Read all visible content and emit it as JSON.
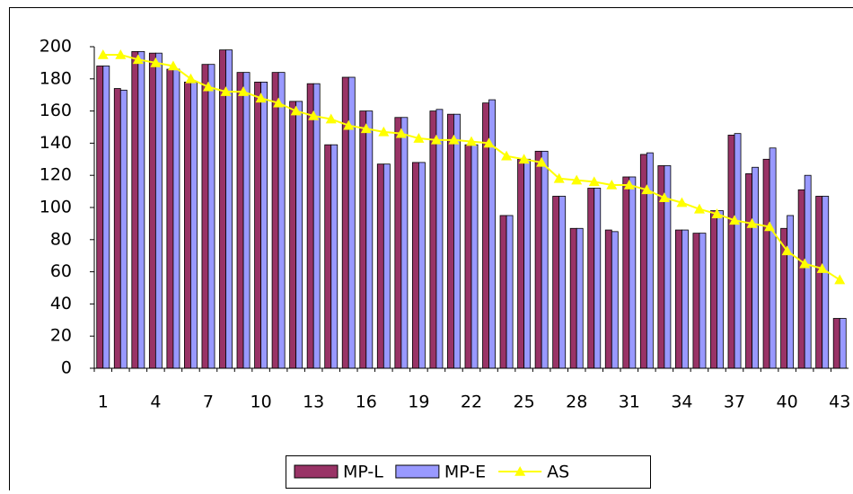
{
  "chart_data": {
    "type": "bar_line",
    "categories": [
      "1",
      null,
      null,
      "4",
      null,
      null,
      "7",
      null,
      null,
      "10",
      null,
      null,
      "13",
      null,
      null,
      "16",
      null,
      null,
      "19",
      null,
      null,
      "22",
      null,
      null,
      "25",
      null,
      null,
      "28",
      null,
      null,
      "31",
      null,
      null,
      "34",
      null,
      null,
      "37",
      null,
      null,
      "40",
      null,
      null,
      "43"
    ],
    "series": [
      {
        "name": "MP-L",
        "color": "#993366",
        "kind": "bar",
        "values": [
          188,
          174,
          197,
          196,
          186,
          178,
          189,
          198,
          184,
          178,
          184,
          166,
          177,
          139,
          181,
          160,
          127,
          156,
          128,
          160,
          158,
          139,
          165,
          95,
          130,
          135,
          107,
          87,
          112,
          86,
          119,
          133,
          126,
          86,
          84,
          98,
          145,
          121,
          130,
          87,
          111,
          107,
          31
        ]
      },
      {
        "name": "MP-E",
        "color": "#9999ff",
        "kind": "bar",
        "values": [
          188,
          173,
          197,
          196,
          186,
          178,
          189,
          198,
          184,
          178,
          184,
          166,
          177,
          139,
          181,
          160,
          127,
          156,
          128,
          161,
          158,
          139,
          167,
          95,
          130,
          135,
          107,
          87,
          112,
          85,
          119,
          134,
          126,
          86,
          84,
          98,
          146,
          125,
          137,
          95,
          120,
          107,
          31
        ]
      },
      {
        "name": "AS",
        "color": "#ffff00",
        "kind": "line",
        "values": [
          195,
          195,
          192,
          190,
          188,
          180,
          175,
          172,
          172,
          168,
          165,
          160,
          157,
          155,
          151,
          149,
          147,
          146,
          143,
          142,
          142,
          141,
          140,
          132,
          130,
          128,
          118,
          117,
          116,
          114,
          114,
          111,
          106,
          103,
          99,
          96,
          92,
          90,
          88,
          73,
          65,
          62,
          55
        ]
      }
    ],
    "ylim": [
      0,
      200
    ],
    "yticks": [
      0,
      20,
      40,
      60,
      80,
      100,
      120,
      140,
      160,
      180,
      200
    ]
  }
}
